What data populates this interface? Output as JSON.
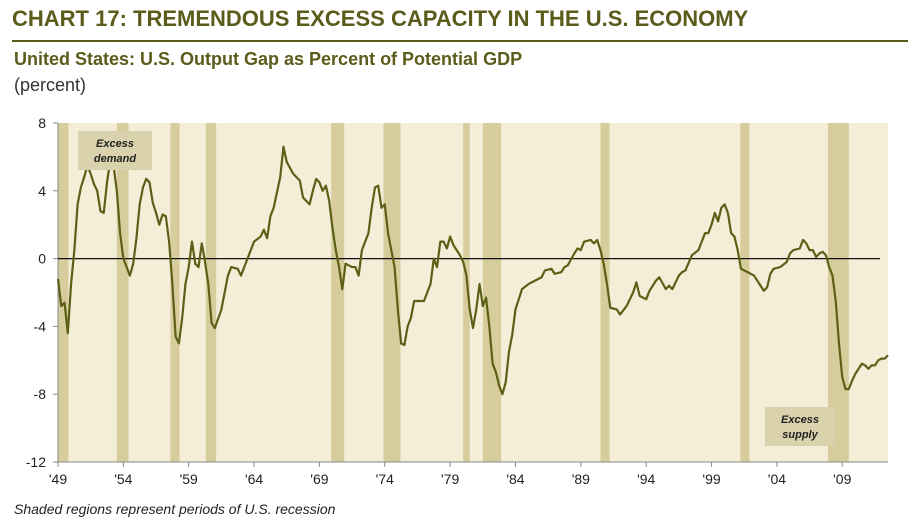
{
  "chart_data": {
    "type": "line",
    "title": "CHART 17: TREMENDOUS EXCESS CAPACITY IN THE U.S. ECONOMY",
    "subtitle": "United States: U.S. Output Gap as Percent of Potential GDP",
    "unit_label": "(percent)",
    "footnote": "Shaded regions represent periods of U.S. recession",
    "annotations": [
      [
        "Excess",
        "demand"
      ],
      [
        "Excess",
        "supply"
      ]
    ],
    "recessions": [
      [
        1949.0,
        1949.8
      ],
      [
        1953.5,
        1954.4
      ],
      [
        1957.6,
        1958.3
      ],
      [
        1960.3,
        1961.1
      ],
      [
        1969.9,
        1970.9
      ],
      [
        1973.9,
        1975.2
      ],
      [
        1980.0,
        1980.5
      ],
      [
        1981.5,
        1982.9
      ],
      [
        1990.5,
        1991.2
      ],
      [
        2001.2,
        2001.9
      ],
      [
        2007.9,
        2009.5
      ]
    ],
    "recession_color": "#d7cd9c",
    "background_color": "#f4eed9",
    "xlim": [
      1949,
      2012.5
    ],
    "ylim": [
      -12,
      8
    ],
    "yticks": [
      -12,
      -8,
      -4,
      0,
      4,
      8
    ],
    "xticks": [
      {
        "value": 1949,
        "label": "'49"
      },
      {
        "value": 1954,
        "label": "'54"
      },
      {
        "value": 1959,
        "label": "'59"
      },
      {
        "value": 1964,
        "label": "'64"
      },
      {
        "value": 1969,
        "label": "'69"
      },
      {
        "value": 1974,
        "label": "'74"
      },
      {
        "value": 1979,
        "label": "'79"
      },
      {
        "value": 1984,
        "label": "'84"
      },
      {
        "value": 1989,
        "label": "'89"
      },
      {
        "value": 1994,
        "label": "'94"
      },
      {
        "value": 1999,
        "label": "'99"
      },
      {
        "value": 2004,
        "label": "'04"
      },
      {
        "value": 2009,
        "label": "'09"
      }
    ],
    "x": [
      1949.0,
      1949.25,
      1949.5,
      1949.75,
      1950.0,
      1950.25,
      1950.5,
      1950.75,
      1951.0,
      1951.25,
      1951.5,
      1951.75,
      1952.0,
      1952.25,
      1952.5,
      1952.75,
      1953.0,
      1953.25,
      1953.5,
      1953.75,
      1954.0,
      1954.25,
      1954.5,
      1954.75,
      1955.0,
      1955.25,
      1955.5,
      1955.75,
      1956.0,
      1956.25,
      1956.5,
      1956.75,
      1957.0,
      1957.25,
      1957.5,
      1957.75,
      1958.0,
      1958.25,
      1958.5,
      1958.75,
      1959.0,
      1959.25,
      1959.5,
      1959.75,
      1960.0,
      1960.25,
      1960.5,
      1960.75,
      1961.0,
      1961.5,
      1962.0,
      1962.25,
      1962.75,
      1963.0,
      1963.5,
      1964.0,
      1964.5,
      1964.75,
      1965.0,
      1965.25,
      1965.5,
      1966.0,
      1966.25,
      1966.5,
      1967.0,
      1967.5,
      1967.75,
      1968.25,
      1968.5,
      1968.75,
      1969.0,
      1969.25,
      1969.5,
      1969.75,
      1970.0,
      1970.25,
      1970.5,
      1970.75,
      1971.0,
      1971.5,
      1971.75,
      1972.0,
      1972.25,
      1972.75,
      1973.0,
      1973.25,
      1973.5,
      1973.75,
      1974.0,
      1974.25,
      1974.75,
      1975.0,
      1975.25,
      1975.5,
      1975.75,
      1976.0,
      1976.25,
      1976.75,
      1977.0,
      1977.5,
      1977.75,
      1978.0,
      1978.25,
      1978.5,
      1978.75,
      1979.0,
      1979.25,
      1979.5,
      1979.75,
      1980.0,
      1980.25,
      1980.5,
      1980.75,
      1981.0,
      1981.25,
      1981.5,
      1981.75,
      1982.0,
      1982.25,
      1982.5,
      1982.75,
      1983.0,
      1983.25,
      1983.5,
      1983.75,
      1984.0,
      1984.5,
      1985.0,
      1985.5,
      1986.0,
      1986.25,
      1986.75,
      1987.0,
      1987.5,
      1987.75,
      1988.0,
      1988.5,
      1988.75,
      1989.0,
      1989.25,
      1989.75,
      1990.0,
      1990.25,
      1990.5,
      1990.75,
      1991.0,
      1991.25,
      1991.75,
      1992.0,
      1992.5,
      1993.0,
      1993.25,
      1993.5,
      1994.0,
      1994.25,
      1994.75,
      1995.0,
      1995.5,
      1995.75,
      1996.0,
      1996.5,
      1996.75,
      1997.0,
      1997.5,
      1998.0,
      1998.5,
      1998.75,
      1999.0,
      1999.25,
      1999.5,
      1999.75,
      2000.0,
      2000.25,
      2000.5,
      2000.75,
      2001.0,
      2001.25,
      2001.5,
      2001.75,
      2002.0,
      2002.25,
      2002.75,
      2003.0,
      2003.25,
      2003.5,
      2003.75,
      2004.25,
      2004.75,
      2005.0,
      2005.25,
      2005.75,
      2006.0,
      2006.25,
      2006.5,
      2006.75,
      2007.0,
      2007.25,
      2007.5,
      2007.75,
      2008.0,
      2008.25,
      2008.5,
      2008.75,
      2009.0,
      2009.25,
      2009.5,
      2009.75,
      2010.0,
      2010.25,
      2010.5,
      2010.75,
      2011.0,
      2011.25,
      2011.5,
      2011.75,
      2012.0,
      2012.25,
      2012.5
    ],
    "series": [
      {
        "name": "Output gap",
        "color": "#5e5f16",
        "values": [
          -1.2,
          -2.8,
          -2.6,
          -4.4,
          -1.5,
          0.5,
          3.2,
          4.2,
          4.8,
          5.5,
          5.0,
          4.4,
          4.0,
          2.8,
          2.7,
          4.5,
          5.8,
          5.5,
          4.0,
          1.5,
          0.0,
          -0.5,
          -1.0,
          -0.3,
          1.2,
          3.2,
          4.2,
          4.7,
          4.5,
          3.3,
          2.7,
          2.0,
          2.6,
          2.5,
          1.0,
          -1.5,
          -4.6,
          -5.0,
          -3.5,
          -1.5,
          -0.5,
          1.0,
          -0.3,
          -0.5,
          0.9,
          -0.2,
          -1.5,
          -3.8,
          -4.1,
          -3.0,
          -1.0,
          -0.5,
          -0.6,
          -1.0,
          0.0,
          1.0,
          1.3,
          1.7,
          1.2,
          2.5,
          3.0,
          4.8,
          6.6,
          5.7,
          5.0,
          4.6,
          3.6,
          3.2,
          4.0,
          4.7,
          4.5,
          4.0,
          4.3,
          3.4,
          1.8,
          0.5,
          -0.5,
          -1.8,
          -0.3,
          -0.5,
          -0.5,
          -1.0,
          0.5,
          1.5,
          3.0,
          4.2,
          4.3,
          3.0,
          3.2,
          1.5,
          -0.5,
          -3.0,
          -5.0,
          -5.1,
          -4.0,
          -3.5,
          -2.5,
          -2.5,
          -2.5,
          -1.5,
          0.0,
          -0.5,
          1.0,
          1.0,
          0.6,
          1.3,
          0.8,
          0.5,
          0.2,
          -0.2,
          -1.0,
          -3.0,
          -4.1,
          -3.0,
          -1.5,
          -2.8,
          -2.3,
          -4.0,
          -6.2,
          -6.7,
          -7.5,
          -8.0,
          -7.3,
          -5.5,
          -4.5,
          -3.0,
          -1.8,
          -1.5,
          -1.3,
          -1.1,
          -0.7,
          -0.6,
          -0.9,
          -0.8,
          -0.5,
          -0.4,
          0.3,
          0.6,
          0.5,
          1.0,
          1.1,
          0.9,
          1.1,
          0.5,
          -0.3,
          -1.5,
          -2.9,
          -3.0,
          -3.3,
          -2.8,
          -2.0,
          -1.4,
          -2.2,
          -2.4,
          -1.9,
          -1.3,
          -1.1,
          -1.8,
          -1.6,
          -1.8,
          -1.0,
          -0.8,
          -0.7,
          0.2,
          0.5,
          1.5,
          1.5,
          2.0,
          2.7,
          2.2,
          3.0,
          3.2,
          2.7,
          1.5,
          1.3,
          0.5,
          -0.6,
          -0.7,
          -0.8,
          -0.9,
          -1.0,
          -1.6,
          -1.9,
          -1.7,
          -0.9,
          -0.6,
          -0.5,
          -0.2,
          0.3,
          0.5,
          0.6,
          1.1,
          0.9,
          0.5,
          0.5,
          0.1,
          0.3,
          0.4,
          0.2,
          -0.5,
          -1.0,
          -2.5,
          -5.0,
          -7.0,
          -7.7,
          -7.7,
          -7.2,
          -6.8,
          -6.5,
          -6.2,
          -6.3,
          -6.5,
          -6.3,
          -6.3,
          -6.0,
          -5.9,
          -5.9,
          -5.7
        ]
      }
    ]
  }
}
